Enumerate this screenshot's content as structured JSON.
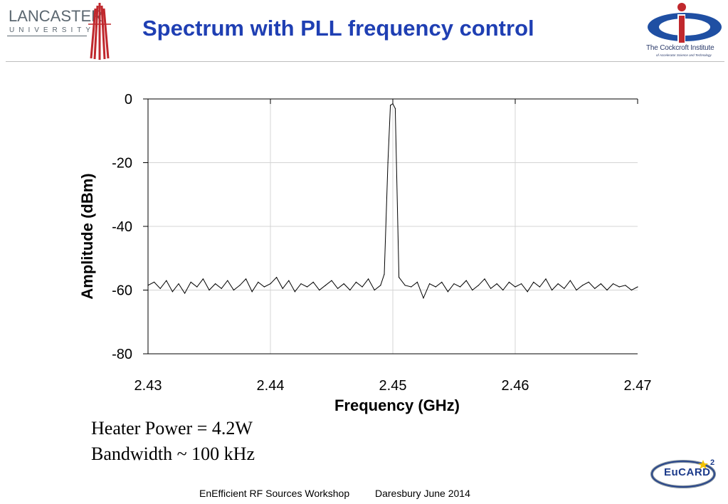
{
  "header": {
    "title": "Spectrum with PLL frequency control",
    "lancaster_word": "LANCASTER",
    "lancaster_sub": "UNIVERSITY",
    "cockcroft_name": "The Cockcroft Institute",
    "cockcroft_sub": "of Accelerator Science and Technology"
  },
  "notes": {
    "line1": "Heater Power = 4.2W",
    "line2": "Bandwidth ~ 100 kHz"
  },
  "footer": {
    "event": "EnEfficient RF Sources Workshop",
    "place_date": "Daresbury June 2014"
  },
  "eucard": {
    "name": "EuCARD",
    "sup": "2"
  },
  "chart_data": {
    "type": "line",
    "xlabel": "Frequency (GHz)",
    "ylabel": "Amplitude (dBm)",
    "xlim": [
      2.43,
      2.47
    ],
    "ylim": [
      -80,
      0
    ],
    "x_ticks": [
      "2.43",
      "2.44",
      "2.45",
      "2.46",
      "2.47"
    ],
    "y_ticks": [
      "0",
      "-20",
      "-40",
      "-60",
      "-80"
    ],
    "grid": true,
    "line_color": "#000000",
    "series": [
      {
        "x": [
          2.43,
          2.4305,
          2.431,
          2.4315,
          2.432,
          2.4325,
          2.433,
          2.4335,
          2.434,
          2.4345,
          2.435,
          2.4355,
          2.436,
          2.4365,
          2.437,
          2.4375,
          2.438,
          2.4385,
          2.439,
          2.4395,
          2.44,
          2.4405,
          2.441,
          2.4415,
          2.442,
          2.4425,
          2.443,
          2.4435,
          2.444,
          2.4445,
          2.445,
          2.4455,
          2.446,
          2.4465,
          2.447,
          2.4475,
          2.448,
          2.4485,
          2.449,
          2.4493,
          2.4496,
          2.4498,
          2.45,
          2.4502,
          2.4505,
          2.451,
          2.4515,
          2.452,
          2.4525,
          2.453,
          2.4535,
          2.454,
          2.4545,
          2.455,
          2.4555,
          2.456,
          2.4565,
          2.457,
          2.4575,
          2.458,
          2.4585,
          2.459,
          2.4595,
          2.46,
          2.4605,
          2.461,
          2.4615,
          2.462,
          2.4625,
          2.463,
          2.4635,
          2.464,
          2.4645,
          2.465,
          2.4655,
          2.466,
          2.4665,
          2.467,
          2.4675,
          2.468,
          2.4685,
          2.469,
          2.4695,
          2.47
        ],
        "y": [
          -58.5,
          -57.5,
          -59.5,
          -57,
          -60.5,
          -58,
          -61,
          -57.5,
          -59,
          -56.5,
          -60,
          -58,
          -59.5,
          -57,
          -60,
          -58.5,
          -56.5,
          -60.5,
          -57.5,
          -59,
          -58,
          -56,
          -59.5,
          -57,
          -60.5,
          -58,
          -59,
          -57.5,
          -60,
          -58.5,
          -57,
          -59.5,
          -58,
          -60,
          -57.5,
          -59,
          -56.5,
          -60,
          -58.5,
          -55,
          -20,
          -2,
          -1.5,
          -3,
          -56,
          -58.5,
          -59,
          -57.5,
          -62.5,
          -58,
          -59,
          -57.5,
          -60.5,
          -58,
          -59,
          -57,
          -60,
          -58.5,
          -56.5,
          -59.5,
          -58,
          -60,
          -57.5,
          -59,
          -58,
          -60.5,
          -57.5,
          -59,
          -56.5,
          -60,
          -58,
          -59.5,
          -57,
          -60,
          -58.5,
          -57.5,
          -59.5,
          -58,
          -60,
          -58,
          -59,
          -58.5,
          -60,
          -59
        ]
      }
    ]
  }
}
